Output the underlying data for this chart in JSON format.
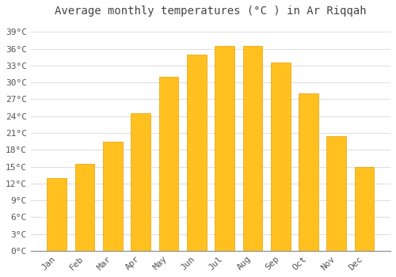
{
  "title": "Average monthly temperatures (°C ) in Ar Riqqah",
  "months": [
    "Jan",
    "Feb",
    "Mar",
    "Apr",
    "May",
    "Jun",
    "Jul",
    "Aug",
    "Sep",
    "Oct",
    "Nov",
    "Dec"
  ],
  "values": [
    13,
    15.5,
    19.5,
    24.5,
    31,
    35,
    36.5,
    36.5,
    33.5,
    28,
    20.5,
    15
  ],
  "bar_color_top": "#FFC020",
  "bar_color_bottom": "#F5A800",
  "bar_edge_color": "#E8A000",
  "background_color": "#FFFFFF",
  "grid_color": "#E0E0E0",
  "text_color": "#555555",
  "title_color": "#444444",
  "ylim": [
    0,
    41
  ],
  "yticks": [
    0,
    3,
    6,
    9,
    12,
    15,
    18,
    21,
    24,
    27,
    30,
    33,
    36,
    39
  ],
  "ylabel_suffix": "°C",
  "title_fontsize": 10,
  "tick_fontsize": 8,
  "font_family": "monospace"
}
